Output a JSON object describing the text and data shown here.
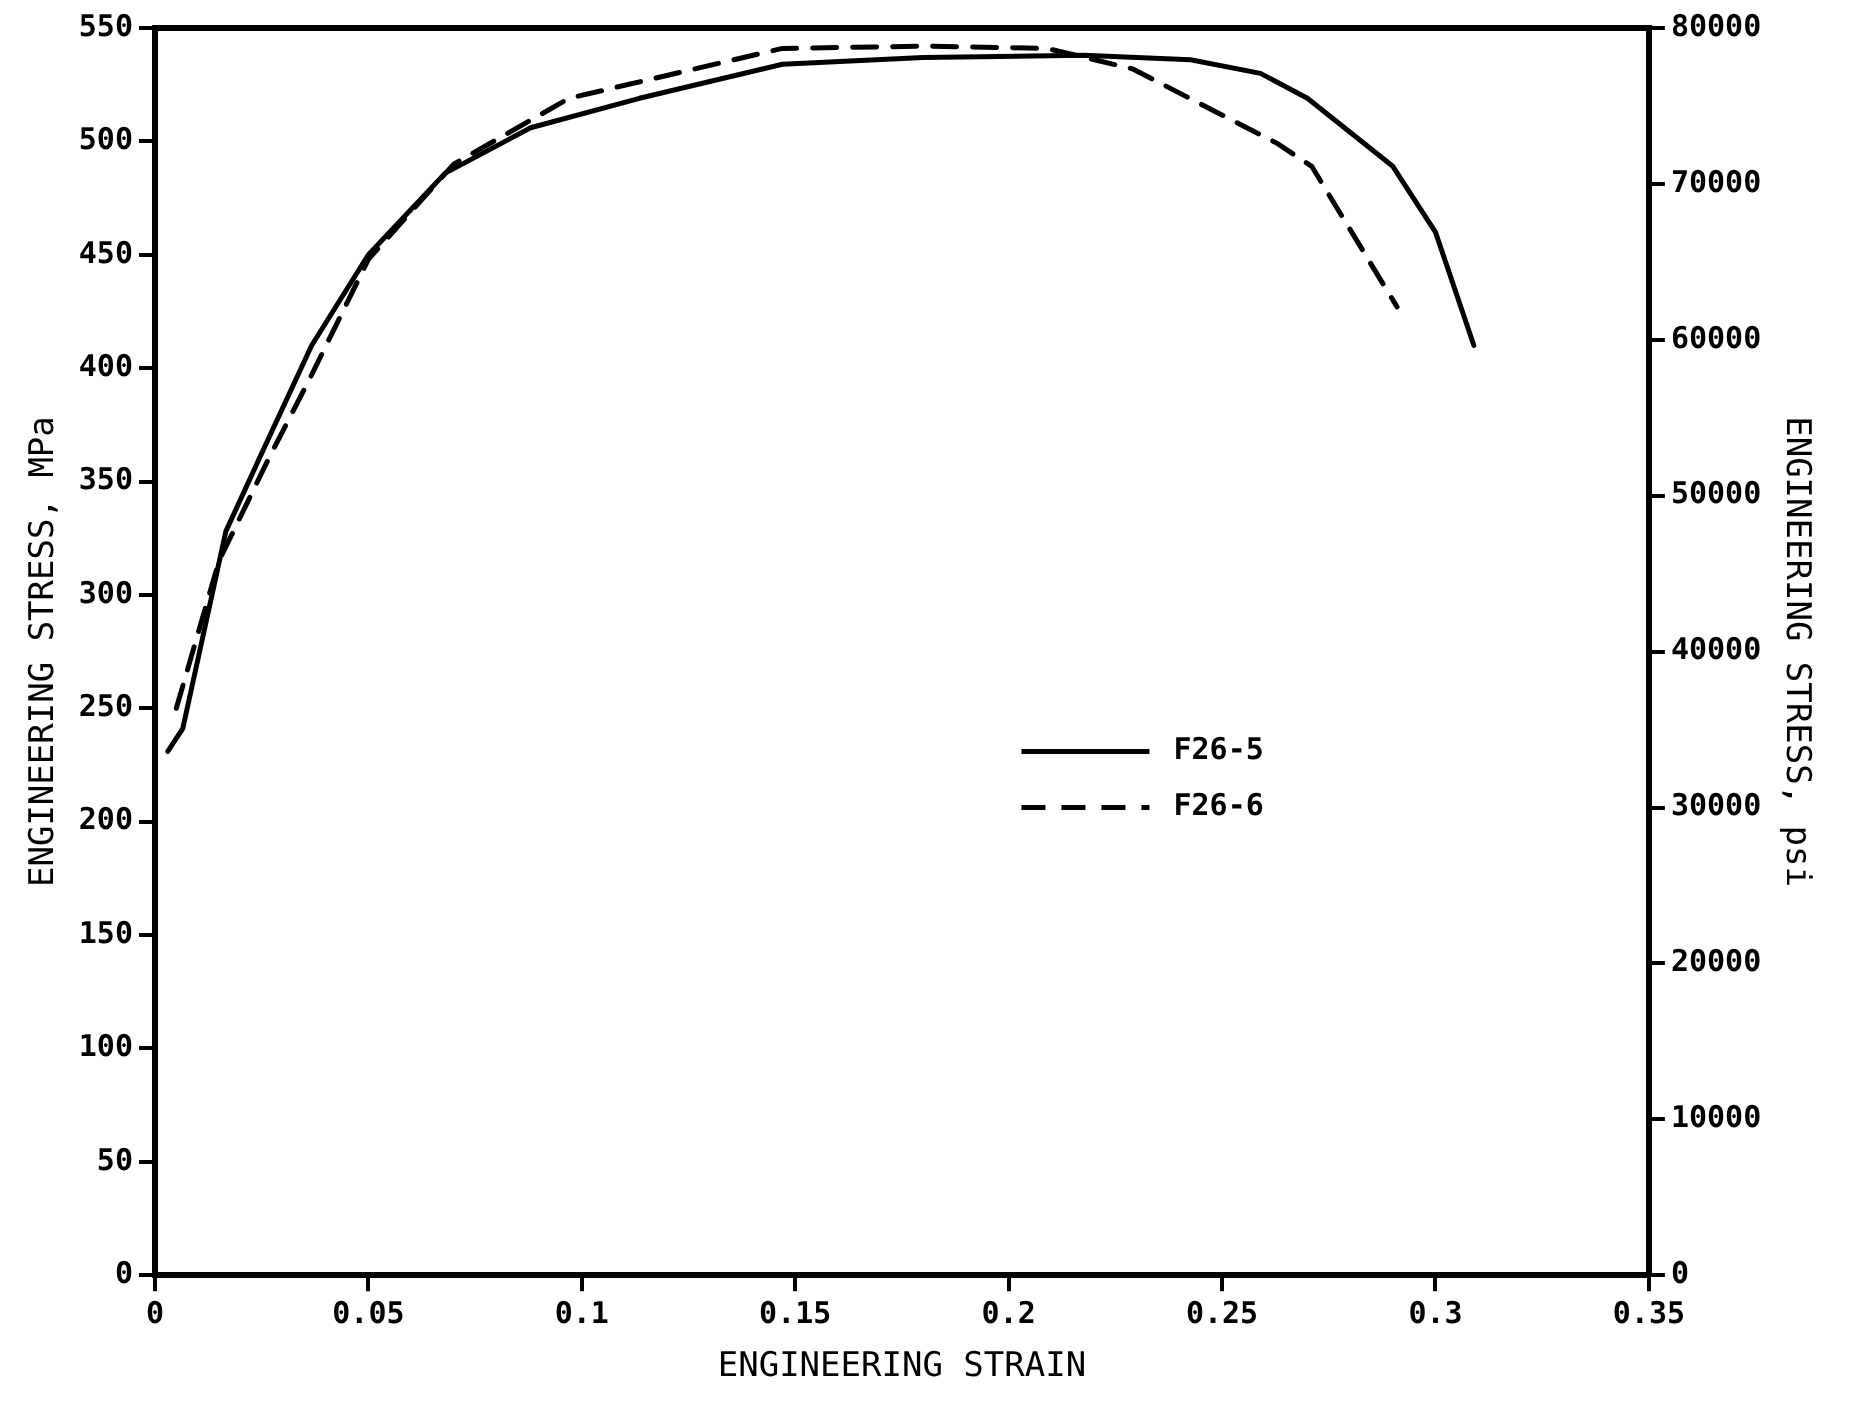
{
  "chart_data": {
    "type": "line",
    "xlabel": "ENGINEERING STRAIN",
    "ylabel": "ENGINEERING STRESS, MPa",
    "y2label": "ENGINEERING STRESS, psi",
    "xlim": [
      0,
      0.35
    ],
    "xticks": [
      0,
      0.05,
      0.1,
      0.15,
      0.2,
      0.25,
      0.3,
      0.35
    ],
    "ylim": [
      0,
      550
    ],
    "yticks": [
      0,
      50,
      100,
      150,
      200,
      250,
      300,
      350,
      400,
      450,
      500,
      550
    ],
    "y2lim": [
      0,
      80000
    ],
    "y2ticks": [
      0,
      10000,
      20000,
      30000,
      40000,
      50000,
      60000,
      70000,
      80000
    ],
    "grid": false,
    "legend": "right",
    "marker": "none",
    "series": [
      {
        "name": "F26-5",
        "color": "#000000",
        "line_style": "solid",
        "x": [
          0.003,
          0.0065,
          0.0166,
          0.0266,
          0.0367,
          0.05,
          0.068,
          0.088,
          0.1135,
          0.147,
          0.18,
          0.2175,
          0.2426,
          0.259,
          0.27,
          0.29,
          0.3,
          0.309
        ],
        "values": [
          231,
          241,
          328,
          369,
          410,
          450,
          486,
          506,
          519,
          534,
          537,
          538,
          536,
          530,
          519,
          489,
          460,
          410
        ]
      },
      {
        "name": "F26-6",
        "color": "#000000",
        "line_style": "dashed",
        "x": [
          0.005,
          0.015,
          0.0266,
          0.0367,
          0.05,
          0.07,
          0.097,
          0.147,
          0.18,
          0.209,
          0.229,
          0.263,
          0.271,
          0.291
        ],
        "values": [
          250,
          315,
          360,
          397,
          448,
          490,
          519,
          541,
          542,
          541,
          532,
          499,
          489,
          427
        ]
      }
    ]
  }
}
